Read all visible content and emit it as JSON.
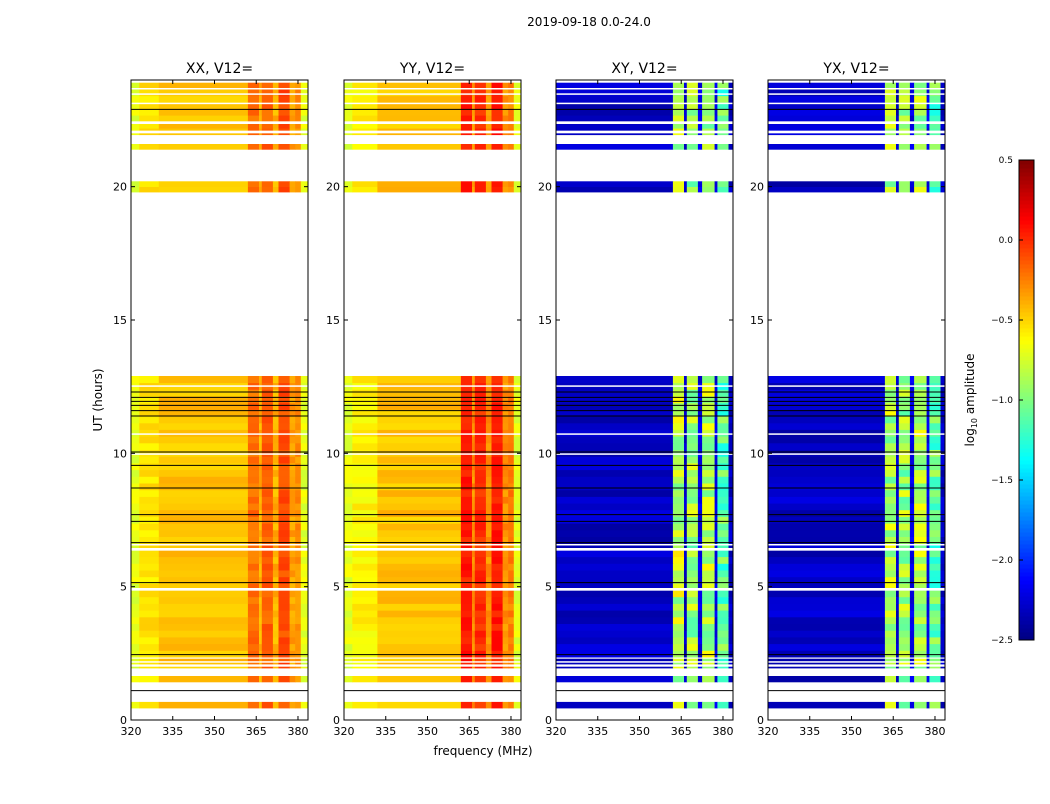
{
  "chart_data": {
    "type": "heatmap",
    "title": "2019-09-18 0.0-24.0",
    "xlabel": "frequency (MHz)",
    "ylabel": "UT (hours)",
    "xlim": [
      320,
      383.6
    ],
    "ylim": [
      0,
      24
    ],
    "xticks": [
      320,
      335,
      350,
      365,
      380
    ],
    "yticks": [
      0,
      5,
      10,
      15,
      20
    ],
    "panels": [
      {
        "title": "XX, V12=",
        "kind": "parallel",
        "segments": [
          [
            320,
            323,
            -0.7
          ],
          [
            323,
            330,
            -0.55
          ],
          [
            330,
            362,
            -0.45
          ],
          [
            362,
            366,
            -0.2
          ],
          [
            366,
            367,
            -0.4
          ],
          [
            367,
            371,
            -0.15
          ],
          [
            371,
            373,
            -0.4
          ],
          [
            373,
            377,
            -0.1
          ],
          [
            377,
            379,
            -0.35
          ],
          [
            379,
            381,
            -0.3
          ],
          [
            381,
            383.6,
            -0.7
          ]
        ]
      },
      {
        "title": "YY, V12=",
        "kind": "parallel",
        "segments": [
          [
            320,
            323,
            -0.7
          ],
          [
            323,
            332,
            -0.6
          ],
          [
            332,
            362,
            -0.45
          ],
          [
            362,
            366,
            0.05
          ],
          [
            366,
            367,
            -0.3
          ],
          [
            367,
            371,
            0.0
          ],
          [
            371,
            373,
            -0.3
          ],
          [
            373,
            377,
            0.05
          ],
          [
            377,
            379,
            -0.3
          ],
          [
            379,
            381,
            -0.25
          ],
          [
            381,
            383.6,
            -0.7
          ]
        ]
      },
      {
        "title": "XY, V12=",
        "kind": "cross",
        "segments": [
          [
            320,
            362,
            -2.3
          ],
          [
            362,
            366,
            -0.8
          ],
          [
            366,
            367,
            -2.3
          ],
          [
            367,
            371,
            -0.9
          ],
          [
            371,
            372.5,
            -2.2
          ],
          [
            372.5,
            377,
            -0.85
          ],
          [
            377,
            378,
            -2.2
          ],
          [
            378,
            382,
            -1.1
          ],
          [
            382,
            383.6,
            -2.3
          ]
        ]
      },
      {
        "title": "YX, V12=",
        "kind": "cross",
        "segments": [
          [
            320,
            362,
            -2.3
          ],
          [
            362,
            366,
            -0.85
          ],
          [
            366,
            367,
            -2.3
          ],
          [
            367,
            371,
            -0.9
          ],
          [
            371,
            372.5,
            -2.2
          ],
          [
            372.5,
            377,
            -0.85
          ],
          [
            377,
            378,
            -2.2
          ],
          [
            378,
            382,
            -1.1
          ],
          [
            382,
            383.6,
            -2.3
          ]
        ]
      }
    ],
    "data_bands_ut": [
      [
        0.45,
        0.68
      ],
      [
        1.43,
        1.65
      ],
      [
        1.95,
        2.0
      ],
      [
        2.1,
        2.15
      ],
      [
        2.22,
        2.3
      ],
      [
        2.36,
        12.9
      ],
      [
        19.8,
        20.2
      ],
      [
        21.4,
        21.6
      ],
      [
        21.95,
        23.9
      ]
    ],
    "gaps_ut": [
      [
        4.85,
        4.95
      ],
      [
        6.35,
        6.45
      ],
      [
        6.55,
        6.6
      ],
      [
        9.95,
        10.0
      ],
      [
        10.7,
        10.75
      ],
      [
        12.5,
        12.55
      ],
      [
        22.0,
        22.1
      ],
      [
        22.35,
        22.45
      ],
      [
        23.1,
        23.15
      ],
      [
        23.45,
        23.5
      ],
      [
        23.65,
        23.7
      ]
    ],
    "flag_lines_ut": [
      2.45,
      5.15,
      6.65,
      7.45,
      7.7,
      8.7,
      9.55,
      10.05,
      11.4,
      11.6,
      11.8,
      11.95,
      12.1,
      12.3,
      1.1,
      22.9
    ],
    "colorbar": {
      "label": "log10 amplitude",
      "range": [
        -2.5,
        0.5
      ],
      "ticks": [
        -2.5,
        -2.0,
        -1.5,
        -1.0,
        -0.5,
        0.0,
        0.5
      ],
      "tick_labels": [
        "−2.5",
        "−2.0",
        "−1.5",
        "−1.0",
        "−0.5",
        "0.0",
        "0.5"
      ],
      "colormap": "jet"
    }
  }
}
